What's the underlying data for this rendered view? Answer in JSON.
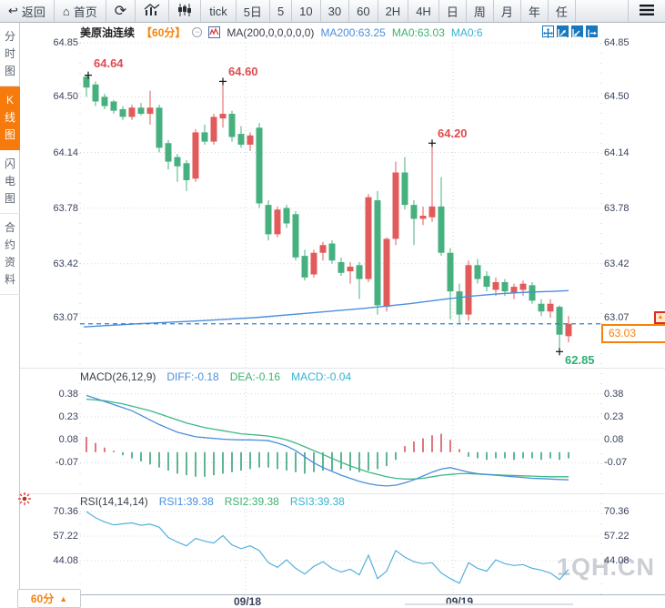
{
  "toolbar": {
    "back": "返回",
    "home": "首页",
    "tick": "tick",
    "periods": [
      "5日",
      "5",
      "10",
      "30",
      "60",
      "2H",
      "4H",
      "日",
      "周",
      "月",
      "年",
      "任"
    ]
  },
  "sidebar": {
    "items": [
      {
        "label": "分时图",
        "active": false
      },
      {
        "label": "K线图",
        "active": true
      },
      {
        "label": "闪电图",
        "active": false
      },
      {
        "label": "合约资料",
        "active": false
      }
    ]
  },
  "chart_header": {
    "symbol": "美原油连续",
    "period": "【60分】",
    "ma_formula": "MA(200,0,0,0,0,0)",
    "ma200": "MA200:63.25",
    "ma0_green": "MA0:63.03",
    "ma0_cyan": "MA0:6"
  },
  "main_axis": [
    "64.85",
    "64.50",
    "64.14",
    "63.78",
    "63.42",
    "63.07"
  ],
  "macd_header": {
    "title": "MACD(26,12,9)",
    "diff": "DIFF:-0.18",
    "dea": "DEA:-0.16",
    "macd": "MACD:-0.04"
  },
  "macd_axis": [
    "0.38",
    "0.23",
    "0.08",
    "-0.07"
  ],
  "rsi_header": {
    "title": "RSI(14,14,14)",
    "rsi1": "RSI1:39.38",
    "rsi2": "RSI2:39.38",
    "rsi3": "RSI3:39.38"
  },
  "rsi_axis": [
    "70.36",
    "57.22",
    "44.08"
  ],
  "xaxis": [
    "09/18",
    "09/19"
  ],
  "annotations": {
    "high1": "64.64",
    "high2": "64.60",
    "high3": "64.20",
    "low": "62.85",
    "last": "63.03",
    "alert_arrow": "▲"
  },
  "bottom_left": {
    "label": "60分",
    "arrow": "▲"
  },
  "watermark": "1QH.CN",
  "colors": {
    "up": "#e25b5b",
    "down": "#47b07f",
    "ma_line": "#4a8fdc",
    "dash_line": "#2f7ed8",
    "diff": "#4a8fdc",
    "dea": "#3cb884",
    "rsi": "#55b0dc",
    "hist_up": "#d9545e",
    "hist_down": "#36a476",
    "accent_orange": "#f5820d",
    "anno_red": "#e14a4e",
    "anno_green": "#2fae74",
    "grid": "#d4d8dd",
    "active_tab_bg": "#f67a0c"
  },
  "chart_data": {
    "type": "candlestick",
    "title": "美原油连续 60分",
    "price_axis": [
      64.85,
      64.5,
      64.14,
      63.78,
      63.42,
      63.07
    ],
    "session_labels": [
      "09/18",
      "09/19"
    ],
    "last_price": 63.03,
    "marked_high": 64.64,
    "marked_high2": 64.6,
    "marked_high3": 64.2,
    "marked_low": 62.85,
    "candles_ohlc": [
      [
        64.63,
        64.64,
        64.5,
        64.56
      ],
      [
        64.58,
        64.6,
        64.44,
        64.47
      ],
      [
        64.5,
        64.52,
        64.42,
        64.44
      ],
      [
        64.47,
        64.48,
        64.39,
        64.41
      ],
      [
        64.42,
        64.44,
        64.35,
        64.37
      ],
      [
        64.37,
        64.45,
        64.35,
        64.43
      ],
      [
        64.43,
        64.46,
        64.38,
        64.39
      ],
      [
        64.39,
        64.54,
        64.32,
        64.43
      ],
      [
        64.43,
        64.45,
        64.14,
        64.17
      ],
      [
        64.2,
        64.22,
        64.03,
        64.08
      ],
      [
        64.11,
        64.13,
        63.95,
        64.05
      ],
      [
        64.07,
        64.09,
        63.89,
        63.96
      ],
      [
        63.97,
        64.29,
        63.95,
        64.27
      ],
      [
        64.27,
        64.32,
        64.19,
        64.21
      ],
      [
        64.21,
        64.39,
        64.19,
        64.37
      ],
      [
        64.36,
        64.6,
        64.3,
        64.39
      ],
      [
        64.39,
        64.41,
        64.21,
        64.24
      ],
      [
        64.26,
        64.31,
        64.17,
        64.19
      ],
      [
        64.19,
        64.27,
        64.15,
        64.25
      ],
      [
        64.3,
        64.33,
        63.78,
        63.81
      ],
      [
        63.8,
        63.83,
        63.57,
        63.61
      ],
      [
        63.61,
        63.79,
        63.59,
        63.77
      ],
      [
        63.78,
        63.8,
        63.65,
        63.68
      ],
      [
        63.74,
        63.76,
        63.44,
        63.46
      ],
      [
        63.47,
        63.51,
        63.31,
        63.33
      ],
      [
        63.35,
        63.51,
        63.33,
        63.49
      ],
      [
        63.49,
        63.56,
        63.44,
        63.54
      ],
      [
        63.55,
        63.57,
        63.42,
        63.44
      ],
      [
        63.43,
        63.46,
        63.34,
        63.36
      ],
      [
        63.37,
        63.43,
        63.29,
        63.4
      ],
      [
        63.41,
        63.43,
        63.19,
        63.32
      ],
      [
        63.32,
        63.87,
        63.3,
        63.85
      ],
      [
        63.83,
        63.89,
        63.09,
        63.15
      ],
      [
        63.14,
        63.59,
        63.11,
        63.58
      ],
      [
        63.58,
        64.08,
        63.54,
        64.01
      ],
      [
        64.01,
        64.11,
        63.77,
        63.8
      ],
      [
        63.8,
        63.83,
        63.54,
        63.71
      ],
      [
        63.71,
        63.79,
        63.67,
        63.73
      ],
      [
        63.72,
        64.2,
        63.69,
        63.79
      ],
      [
        63.79,
        63.98,
        63.47,
        63.49
      ],
      [
        63.49,
        63.52,
        63.06,
        63.24
      ],
      [
        63.24,
        63.29,
        63.03,
        63.09
      ],
      [
        63.09,
        63.44,
        63.05,
        63.41
      ],
      [
        63.41,
        63.45,
        63.29,
        63.32
      ],
      [
        63.34,
        63.37,
        63.24,
        63.27
      ],
      [
        63.25,
        63.33,
        63.21,
        63.3
      ],
      [
        63.3,
        63.32,
        63.21,
        63.24
      ],
      [
        63.23,
        63.29,
        63.19,
        63.27
      ],
      [
        63.25,
        63.31,
        63.21,
        63.29
      ],
      [
        63.28,
        63.3,
        63.16,
        63.18
      ],
      [
        63.16,
        63.19,
        63.08,
        63.11
      ],
      [
        63.11,
        63.19,
        63.07,
        63.16
      ],
      [
        63.14,
        63.15,
        62.85,
        62.96
      ],
      [
        62.95,
        63.08,
        62.91,
        63.03
      ]
    ],
    "ma200_points": [
      [
        92,
        63.01
      ],
      [
        150,
        63.03
      ],
      [
        220,
        63.05
      ],
      [
        280,
        63.07
      ],
      [
        340,
        63.1
      ],
      [
        400,
        63.13
      ],
      [
        450,
        63.16
      ],
      [
        490,
        63.19
      ],
      [
        520,
        63.21
      ],
      [
        550,
        63.225
      ],
      [
        580,
        63.235
      ],
      [
        605,
        63.24
      ],
      [
        625,
        63.245
      ]
    ],
    "macd": {
      "axis": [
        0.38,
        0.23,
        0.08,
        -0.07
      ],
      "diff": [
        0.37,
        0.35,
        0.33,
        0.31,
        0.29,
        0.27,
        0.24,
        0.21,
        0.18,
        0.155,
        0.13,
        0.115,
        0.1,
        0.095,
        0.09,
        0.085,
        0.082,
        0.08,
        0.08,
        0.078,
        0.075,
        0.06,
        0.04,
        0.01,
        -0.03,
        -0.07,
        -0.1,
        -0.125,
        -0.15,
        -0.17,
        -0.19,
        -0.205,
        -0.215,
        -0.22,
        -0.215,
        -0.2,
        -0.18,
        -0.155,
        -0.13,
        -0.11,
        -0.1,
        -0.115,
        -0.13,
        -0.14,
        -0.145,
        -0.15,
        -0.155,
        -0.16,
        -0.165,
        -0.17,
        -0.172,
        -0.175,
        -0.178,
        -0.18
      ],
      "dea": [
        0.345,
        0.34,
        0.335,
        0.325,
        0.315,
        0.3,
        0.285,
        0.27,
        0.25,
        0.23,
        0.21,
        0.19,
        0.175,
        0.16,
        0.15,
        0.14,
        0.13,
        0.12,
        0.115,
        0.11,
        0.105,
        0.095,
        0.08,
        0.06,
        0.035,
        0.01,
        -0.015,
        -0.04,
        -0.065,
        -0.09,
        -0.11,
        -0.13,
        -0.145,
        -0.16,
        -0.17,
        -0.175,
        -0.175,
        -0.17,
        -0.16,
        -0.15,
        -0.145,
        -0.14,
        -0.14,
        -0.142,
        -0.145,
        -0.147,
        -0.15,
        -0.152,
        -0.154,
        -0.156,
        -0.158,
        -0.16,
        -0.16,
        -0.16
      ],
      "hist": [
        0.1,
        0.06,
        0.03,
        0.01,
        -0.02,
        -0.04,
        -0.06,
        -0.08,
        -0.1,
        -0.12,
        -0.14,
        -0.15,
        -0.16,
        -0.16,
        -0.15,
        -0.14,
        -0.13,
        -0.12,
        -0.11,
        -0.1,
        -0.1,
        -0.11,
        -0.12,
        -0.13,
        -0.14,
        -0.13,
        -0.12,
        -0.12,
        -0.11,
        -0.12,
        -0.13,
        -0.12,
        -0.11,
        -0.09,
        -0.05,
        0.04,
        0.07,
        0.09,
        0.11,
        0.12,
        0.08,
        0.02,
        -0.03,
        -0.04,
        -0.05,
        -0.04,
        -0.04,
        -0.05,
        -0.04,
        -0.04,
        -0.05,
        -0.04,
        -0.05,
        -0.04
      ]
    },
    "rsi": {
      "axis": [
        70.36,
        57.22,
        44.08
      ],
      "values": [
        70.3,
        67.0,
        64.8,
        63.2,
        63.8,
        64.3,
        63.0,
        63.6,
        62.0,
        56.5,
        54.0,
        52.0,
        56.0,
        54.5,
        53.5,
        57.5,
        52.5,
        50.5,
        52.0,
        49.5,
        43.0,
        40.5,
        44.5,
        40.0,
        37.0,
        41.0,
        43.5,
        40.0,
        38.0,
        39.5,
        36.5,
        47.0,
        34.5,
        38.5,
        49.5,
        46.0,
        43.5,
        42.5,
        43.0,
        37.5,
        34.5,
        32.0,
        43.0,
        40.0,
        38.5,
        44.5,
        42.5,
        41.5,
        42.0,
        40.0,
        39.0,
        37.5,
        34.0,
        39.38
      ]
    }
  }
}
